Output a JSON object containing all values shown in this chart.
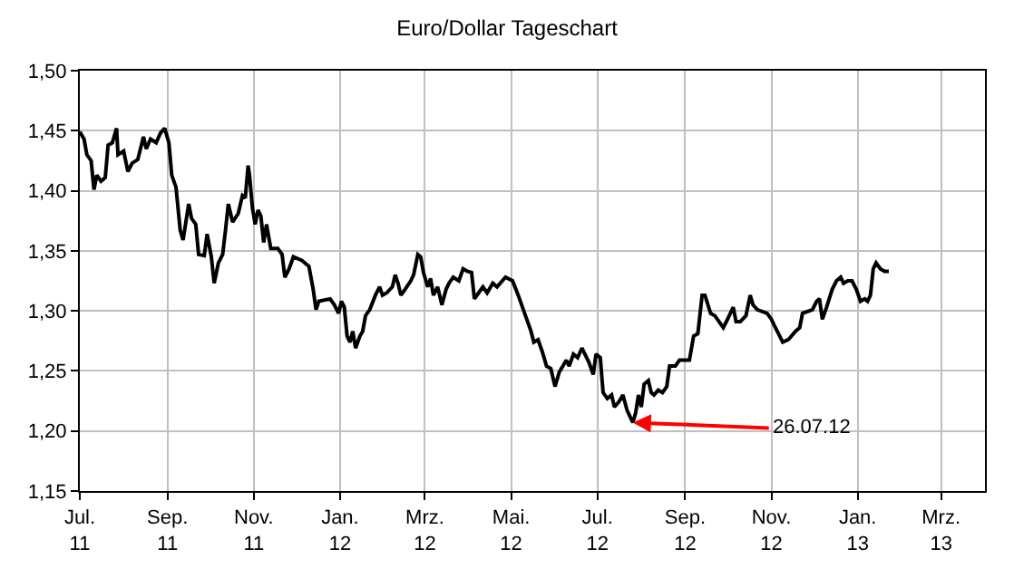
{
  "chart_data": {
    "type": "line",
    "title": "Euro/Dollar Tageschart",
    "x": [
      "2011-07-01",
      "2011-07-04",
      "2011-07-06",
      "2011-07-09",
      "2011-07-11",
      "2011-07-13",
      "2011-07-16",
      "2011-07-19",
      "2011-07-21",
      "2011-07-24",
      "2011-07-27",
      "2011-07-28",
      "2011-08-01",
      "2011-08-04",
      "2011-08-07",
      "2011-08-11",
      "2011-08-15",
      "2011-08-17",
      "2011-08-20",
      "2011-08-24",
      "2011-08-27",
      "2011-08-30",
      "2011-09-02",
      "2011-09-04",
      "2011-09-07",
      "2011-09-10",
      "2011-09-12",
      "2011-09-14",
      "2011-09-16",
      "2011-09-18",
      "2011-09-21",
      "2011-09-23",
      "2011-09-27",
      "2011-09-29",
      "2011-10-02",
      "2011-10-04",
      "2011-10-07",
      "2011-10-10",
      "2011-10-12",
      "2011-10-14",
      "2011-10-17",
      "2011-10-21",
      "2011-10-24",
      "2011-10-26",
      "2011-10-28",
      "2011-10-29",
      "2011-10-31",
      "2011-11-02",
      "2011-11-04",
      "2011-11-06",
      "2011-11-08",
      "2011-11-10",
      "2011-11-13",
      "2011-11-18",
      "2011-11-21",
      "2011-11-23",
      "2011-11-26",
      "2011-11-29",
      "2011-12-05",
      "2011-12-10",
      "2011-12-13",
      "2011-12-15",
      "2011-12-17",
      "2011-12-25",
      "2011-12-28",
      "2011-12-31",
      "2012-01-02",
      "2012-01-04",
      "2012-01-06",
      "2012-01-08",
      "2012-01-10",
      "2012-01-12",
      "2012-01-15",
      "2012-01-17",
      "2012-01-19",
      "2012-01-22",
      "2012-01-26",
      "2012-01-29",
      "2012-01-31",
      "2012-02-03",
      "2012-02-07",
      "2012-02-09",
      "2012-02-11",
      "2012-02-13",
      "2012-02-16",
      "2012-02-20",
      "2012-02-22",
      "2012-02-25",
      "2012-02-27",
      "2012-02-29",
      "2012-03-03",
      "2012-03-05",
      "2012-03-07",
      "2012-03-10",
      "2012-03-13",
      "2012-03-16",
      "2012-03-18",
      "2012-03-21",
      "2012-03-25",
      "2012-03-28",
      "2012-03-31",
      "2012-04-03",
      "2012-04-05",
      "2012-04-08",
      "2012-04-11",
      "2012-04-14",
      "2012-04-18",
      "2012-04-21",
      "2012-04-27",
      "2012-05-02",
      "2012-05-06",
      "2012-05-09",
      "2012-05-12",
      "2012-05-15",
      "2012-05-17",
      "2012-05-20",
      "2012-05-23",
      "2012-05-26",
      "2012-05-29",
      "2012-06-01",
      "2012-06-04",
      "2012-06-09",
      "2012-06-11",
      "2012-06-14",
      "2012-06-17",
      "2012-06-20",
      "2012-06-25",
      "2012-06-28",
      "2012-06-30",
      "2012-07-03",
      "2012-07-05",
      "2012-07-08",
      "2012-07-11",
      "2012-07-13",
      "2012-07-16",
      "2012-07-19",
      "2012-07-22",
      "2012-07-26",
      "2012-07-28",
      "2012-07-30",
      "2012-08-01",
      "2012-08-03",
      "2012-08-06",
      "2012-08-08",
      "2012-08-10",
      "2012-08-13",
      "2012-08-16",
      "2012-08-19",
      "2012-08-21",
      "2012-08-25",
      "2012-08-28",
      "2012-09-04",
      "2012-09-07",
      "2012-09-10",
      "2012-09-13",
      "2012-09-15",
      "2012-09-19",
      "2012-09-22",
      "2012-09-25",
      "2012-09-28",
      "2012-10-01",
      "2012-10-05",
      "2012-10-07",
      "2012-10-10",
      "2012-10-14",
      "2012-10-17",
      "2012-10-19",
      "2012-10-22",
      "2012-10-29",
      "2012-11-01",
      "2012-11-03",
      "2012-11-06",
      "2012-11-09",
      "2012-11-13",
      "2012-11-18",
      "2012-11-21",
      "2012-11-23",
      "2012-11-30",
      "2012-12-03",
      "2012-12-05",
      "2012-12-07",
      "2012-12-10",
      "2012-12-14",
      "2012-12-17",
      "2012-12-20",
      "2012-12-22",
      "2012-12-25",
      "2012-12-28",
      "2012-12-31",
      "2013-01-03",
      "2013-01-06",
      "2013-01-08",
      "2013-01-10",
      "2013-01-12",
      "2013-01-14",
      "2013-01-17",
      "2013-01-20",
      "2013-01-23"
    ],
    "series": [
      {
        "color": "#000000",
        "values": [
          1.449,
          1.443,
          1.43,
          1.425,
          1.401,
          1.413,
          1.408,
          1.411,
          1.438,
          1.44,
          1.452,
          1.43,
          1.433,
          1.416,
          1.423,
          1.426,
          1.445,
          1.435,
          1.443,
          1.44,
          1.448,
          1.452,
          1.44,
          1.413,
          1.403,
          1.367,
          1.359,
          1.374,
          1.389,
          1.377,
          1.372,
          1.347,
          1.346,
          1.364,
          1.345,
          1.323,
          1.34,
          1.347,
          1.367,
          1.389,
          1.374,
          1.381,
          1.396,
          1.394,
          1.421,
          1.413,
          1.386,
          1.372,
          1.384,
          1.379,
          1.357,
          1.372,
          1.352,
          1.352,
          1.347,
          1.328,
          1.335,
          1.345,
          1.342,
          1.337,
          1.318,
          1.301,
          1.308,
          1.31,
          1.305,
          1.298,
          1.308,
          1.303,
          1.279,
          1.274,
          1.283,
          1.269,
          1.279,
          1.283,
          1.296,
          1.301,
          1.313,
          1.32,
          1.313,
          1.315,
          1.32,
          1.33,
          1.323,
          1.313,
          1.318,
          1.325,
          1.33,
          1.347,
          1.345,
          1.332,
          1.32,
          1.327,
          1.313,
          1.32,
          1.305,
          1.318,
          1.323,
          1.328,
          1.325,
          1.335,
          1.333,
          1.332,
          1.31,
          1.315,
          1.32,
          1.315,
          1.323,
          1.32,
          1.328,
          1.325,
          1.313,
          1.303,
          1.293,
          1.283,
          1.274,
          1.276,
          1.266,
          1.254,
          1.252,
          1.237,
          1.249,
          1.259,
          1.254,
          1.264,
          1.261,
          1.269,
          1.257,
          1.247,
          1.264,
          1.261,
          1.232,
          1.227,
          1.23,
          1.22,
          1.224,
          1.23,
          1.217,
          1.207,
          1.215,
          1.23,
          1.22,
          1.239,
          1.242,
          1.232,
          1.23,
          1.234,
          1.232,
          1.237,
          1.254,
          1.254,
          1.259,
          1.259,
          1.279,
          1.281,
          1.313,
          1.313,
          1.298,
          1.296,
          1.291,
          1.286,
          1.293,
          1.303,
          1.291,
          1.291,
          1.296,
          1.313,
          1.305,
          1.301,
          1.298,
          1.293,
          1.288,
          1.281,
          1.274,
          1.276,
          1.283,
          1.286,
          1.298,
          1.301,
          1.308,
          1.31,
          1.293,
          1.303,
          1.318,
          1.325,
          1.328,
          1.323,
          1.325,
          1.325,
          1.318,
          1.308,
          1.31,
          1.308,
          1.313,
          1.335,
          1.34,
          1.335,
          1.333,
          1.333
        ]
      }
    ],
    "xlim": [
      "2011-07-01",
      "2013-04-01"
    ],
    "xticks": [
      {
        "value": "2011-07-01",
        "label": "Jul.\n11"
      },
      {
        "value": "2011-09-01",
        "label": "Sep.\n11"
      },
      {
        "value": "2011-11-01",
        "label": "Nov.\n11"
      },
      {
        "value": "2012-01-01",
        "label": "Jan.\n12"
      },
      {
        "value": "2012-03-01",
        "label": "Mrz.\n12"
      },
      {
        "value": "2012-05-01",
        "label": "Mai.\n12"
      },
      {
        "value": "2012-07-01",
        "label": "Jul.\n12"
      },
      {
        "value": "2012-09-01",
        "label": "Sep.\n12"
      },
      {
        "value": "2012-11-01",
        "label": "Nov.\n12"
      },
      {
        "value": "2013-01-01",
        "label": "Jan.\n13"
      },
      {
        "value": "2013-03-01",
        "label": "Mrz.\n13"
      }
    ],
    "ylim": [
      1.15,
      1.5
    ],
    "yticks": [
      {
        "value": 1.15,
        "label": "1,15"
      },
      {
        "value": 1.2,
        "label": "1,20"
      },
      {
        "value": 1.25,
        "label": "1,25"
      },
      {
        "value": 1.3,
        "label": "1,30"
      },
      {
        "value": 1.35,
        "label": "1,35"
      },
      {
        "value": 1.4,
        "label": "1,40"
      },
      {
        "value": 1.45,
        "label": "1,45"
      },
      {
        "value": 1.5,
        "label": "1,50"
      }
    ],
    "annotations": [
      {
        "text": "26.07.12",
        "x": "2012-07-26",
        "y": 1.207
      }
    ],
    "grid": true,
    "marker": "none",
    "line_style": "solid"
  }
}
